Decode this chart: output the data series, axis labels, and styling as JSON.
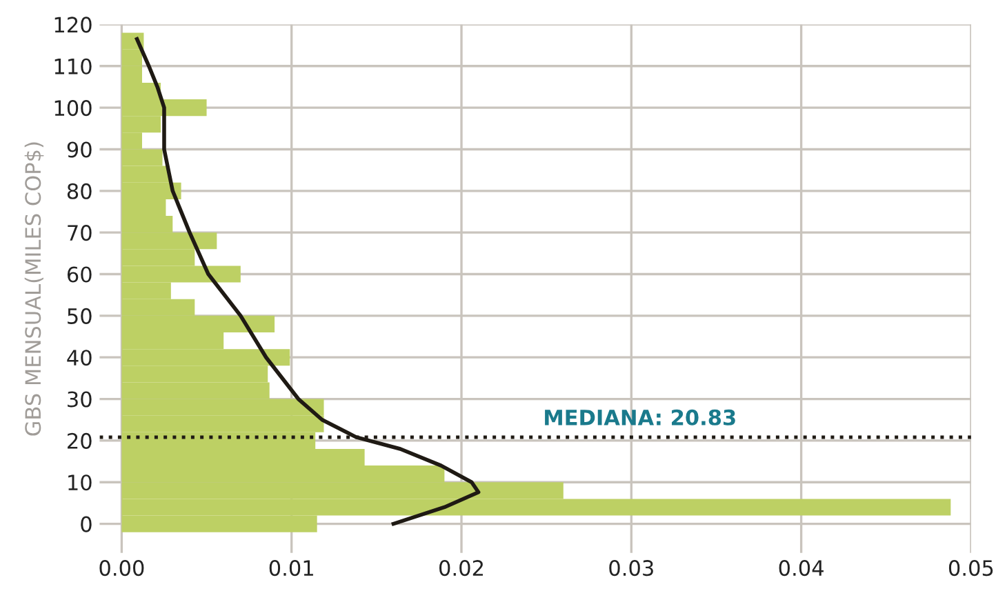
{
  "chart_data": {
    "type": "histogram",
    "orientation": "horizontal",
    "ylabel": "GBS MENSUAL(MILES COP$)",
    "bins": [
      -2,
      2,
      6,
      10,
      14,
      18,
      22,
      26,
      30,
      34,
      38,
      42,
      46,
      50,
      54,
      58,
      62,
      66,
      70,
      74,
      78,
      82,
      86,
      90,
      94,
      98,
      102,
      106,
      110,
      114,
      118
    ],
    "values": [
      0.0115,
      0.0488,
      0.026,
      0.019,
      0.0143,
      0.0114,
      0.0119,
      0.0119,
      0.0087,
      0.0086,
      0.0099,
      0.006,
      0.009,
      0.0043,
      0.0029,
      0.007,
      0.0043,
      0.0056,
      0.003,
      0.0026,
      0.0035,
      0.0028,
      0.0024,
      0.0012,
      0.0023,
      0.005,
      0.0023,
      0.0012,
      0.0012,
      0.0013
    ],
    "color": "#bdd064",
    "series": [
      {
        "type": "line",
        "color": "#1f1a14",
        "x": [
          0,
          4,
          7.6,
          10,
          14,
          18,
          20.83,
          25,
          30,
          40,
          50,
          60,
          70,
          80,
          90,
          100,
          105,
          110,
          116.5
        ],
        "values": [
          0.016,
          0.019,
          0.021,
          0.0206,
          0.0188,
          0.0164,
          0.0138,
          0.0118,
          0.0104,
          0.0085,
          0.007,
          0.0051,
          0.004,
          0.003,
          0.0025,
          0.0025,
          0.0021,
          0.0016,
          0.0009
        ]
      }
    ],
    "ref_lines": [
      {
        "axis": "y",
        "value": 20.83,
        "label": "MEDIANA: 20.83",
        "color": "#1f1a14",
        "line_style": "dotted"
      }
    ],
    "xlim": [
      -0.0013,
      0.05
    ],
    "xticks": [
      {
        "value": 0,
        "label": "0.00"
      },
      0.01,
      0.02,
      0.03,
      0.04,
      0.05
    ],
    "ylim": [
      -7,
      120
    ],
    "yticks": [
      0,
      10,
      20,
      30,
      40,
      50,
      60,
      70,
      80,
      90,
      100,
      110,
      120
    ],
    "grid": true,
    "legend": false
  }
}
